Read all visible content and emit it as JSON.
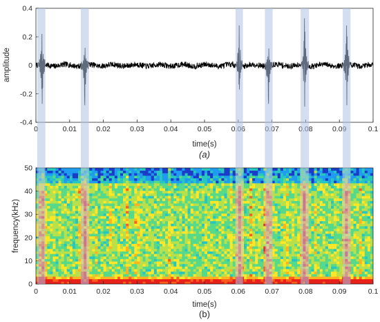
{
  "chart_data": [
    {
      "type": "line",
      "caption": "(a)",
      "xlabel": "time(s)",
      "ylabel": "amplitude",
      "xlim": [
        0,
        0.1
      ],
      "ylim": [
        -0.4,
        0.4
      ],
      "xticks": [
        "0",
        "0.01",
        "0.02",
        "0.03",
        "0.04",
        "0.05",
        "0.06",
        "0.07",
        "0.08",
        "0.09",
        "0.1"
      ],
      "yticks": [
        "-0.4",
        "-0.2",
        "0",
        "0.2",
        "0.4"
      ],
      "line_color": "#000000",
      "highlight_color": "#aec3e6",
      "highlight_bands": [
        {
          "x0": 0.0004,
          "x1": 0.0028
        },
        {
          "x0": 0.0133,
          "x1": 0.0157
        },
        {
          "x0": 0.0592,
          "x1": 0.0614
        },
        {
          "x0": 0.0679,
          "x1": 0.0702
        },
        {
          "x0": 0.0785,
          "x1": 0.081
        },
        {
          "x0": 0.091,
          "x1": 0.0933
        }
      ],
      "spikes": [
        {
          "x": 0.0018,
          "peak": 0.22,
          "trough": -0.27
        },
        {
          "x": 0.0145,
          "peak": 0.17,
          "trough": -0.28
        },
        {
          "x": 0.0603,
          "peak": 0.28,
          "trough": -0.17
        },
        {
          "x": 0.069,
          "peak": 0.14,
          "trough": -0.27
        },
        {
          "x": 0.0797,
          "peak": 0.33,
          "trough": -0.29
        },
        {
          "x": 0.0922,
          "peak": 0.28,
          "trough": -0.28
        }
      ],
      "noise_level": 0.02
    },
    {
      "type": "heatmap",
      "caption": "(b)",
      "xlabel": "time(s)",
      "ylabel": "frequency(kHz)",
      "xlim": [
        0,
        0.1
      ],
      "ylim": [
        0,
        50
      ],
      "xticks": [
        "0",
        "0.01",
        "0.02",
        "0.03",
        "0.04",
        "0.05",
        "0.06",
        "0.07",
        "0.08",
        "0.09",
        "0.1"
      ],
      "yticks": [
        "0",
        "10",
        "20",
        "30",
        "40",
        "50"
      ],
      "colormap": [
        "#1a3cc8",
        "#1f9bf0",
        "#27c6c0",
        "#57d98a",
        "#b8e04a",
        "#ffe626",
        "#ffb21e",
        "#ff5e1a",
        "#e8201a"
      ],
      "time_bins": 120,
      "freq_bins": 46,
      "low_freq_band_khz": [
        0,
        2
      ]
    }
  ]
}
